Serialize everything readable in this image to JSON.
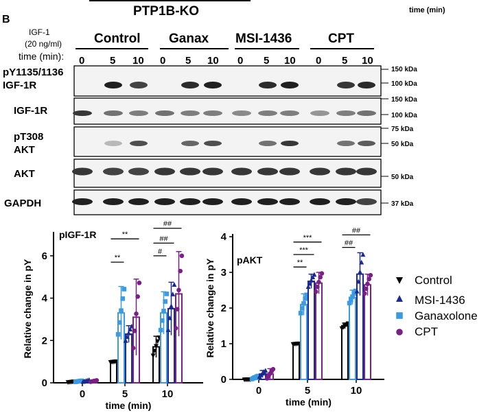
{
  "top_fragment": {
    "group_label": "PTP1B-KO",
    "time_unit_fragment": "time (min)"
  },
  "panel_letter": "B",
  "treatment": {
    "line1": "IGF-1",
    "line2": "(20 ng/ml)",
    "time_label": "time (min):"
  },
  "groups": [
    "Control",
    "Ganax",
    "MSI-1436",
    "CPT"
  ],
  "timepoints": [
    "0",
    "5",
    "10"
  ],
  "blot_rows": [
    {
      "label": "pY1135/1136\nIGF-1R",
      "markers": [
        "150 kDa",
        "100 kDa"
      ]
    },
    {
      "label": "IGF-1R",
      "markers": [
        "150 kDa",
        "100 kDa"
      ]
    },
    {
      "label": "pT308\nAKT",
      "markers": [
        "75 kDa",
        "50 kDa"
      ]
    },
    {
      "label": "AKT",
      "markers": [
        "50 kDa"
      ]
    },
    {
      "label": "GAPDH",
      "markers": [
        "37 kDa"
      ]
    }
  ],
  "colors": {
    "Control": "#000000",
    "MSI-1436": "#1b2a8c",
    "Ganaxolone": "#3a9be0",
    "CPT": "#7a1f86"
  },
  "legend": {
    "entries": [
      {
        "name": "Control",
        "marker": "triangle-down",
        "color": "#000000"
      },
      {
        "name": "MSI-1436",
        "marker": "triangle-up",
        "color": "#1b2a8c"
      },
      {
        "name": "Ganaxolone",
        "marker": "square",
        "color": "#3a9be0"
      },
      {
        "name": "CPT",
        "marker": "circle",
        "color": "#7a1f86"
      }
    ]
  },
  "chart_data": [
    {
      "type": "bar",
      "title": "pIGF-1R",
      "xlabel": "time (min)",
      "ylabel": "Relative change in pY",
      "categories": [
        "0",
        "5",
        "10"
      ],
      "ylim": [
        0,
        7
      ],
      "yticks": [
        0,
        2,
        4,
        6
      ],
      "series": [
        {
          "name": "Control",
          "values": [
            0.05,
            1.0,
            1.7
          ],
          "errors": [
            0.02,
            0.02,
            0.5
          ]
        },
        {
          "name": "Ganaxolone",
          "values": [
            0.07,
            3.3,
            3.3
          ],
          "errors": [
            0.03,
            1.25,
            1.0
          ]
        },
        {
          "name": "MSI-1436",
          "values": [
            0.08,
            2.3,
            3.5
          ],
          "errors": [
            0.05,
            0.4,
            1.25
          ]
        },
        {
          "name": "CPT",
          "values": [
            0.08,
            3.1,
            4.2
          ],
          "errors": [
            0.04,
            1.8,
            2.0
          ]
        }
      ],
      "significance": [
        {
          "label": "**",
          "from": "Control@5",
          "to": "Ganaxolone@5",
          "y": 5.7
        },
        {
          "label": "**",
          "from": "Control@5",
          "to": "CPT@5",
          "y": 6.8
        },
        {
          "label": "#",
          "from": "Control@10",
          "to": "Ganaxolone@10",
          "y": 6.0
        },
        {
          "label": "##",
          "from": "Control@10",
          "to": "MSI-1436@10",
          "y": 6.6
        },
        {
          "label": "##",
          "from": "Control@10",
          "to": "CPT@10",
          "y": 7.3
        }
      ]
    },
    {
      "type": "bar",
      "title": "pAKT",
      "xlabel": "time (min)",
      "ylabel": "Relative change in pY",
      "categories": [
        "0",
        "5",
        "10"
      ],
      "ylim": [
        0,
        4
      ],
      "yticks": [
        0,
        1,
        2,
        3,
        4
      ],
      "series": [
        {
          "name": "Control",
          "values": [
            0.0,
            1.0,
            1.5
          ],
          "errors": [
            0.0,
            0.01,
            0.08
          ]
        },
        {
          "name": "Ganaxolone",
          "values": [
            0.05,
            2.1,
            2.3
          ],
          "errors": [
            0.05,
            0.3,
            0.2
          ]
        },
        {
          "name": "MSI-1436",
          "values": [
            0.15,
            2.75,
            2.95
          ],
          "errors": [
            0.1,
            0.2,
            0.6
          ]
        },
        {
          "name": "CPT",
          "values": [
            0.15,
            2.7,
            2.65
          ],
          "errors": [
            0.15,
            0.3,
            0.3
          ]
        }
      ],
      "significance": [
        {
          "label": "**",
          "from": "Control@5",
          "to": "Ganaxolone@5",
          "y": 3.15
        },
        {
          "label": "***",
          "from": "Control@5",
          "to": "MSI-1436@5",
          "y": 3.5
        },
        {
          "label": "***",
          "from": "Control@5",
          "to": "CPT@5",
          "y": 3.85
        },
        {
          "label": "##",
          "from": "Control@10",
          "to": "Ganaxolone@10",
          "y": 3.7
        },
        {
          "label": "##",
          "from": "Control@10",
          "to": "CPT@10",
          "y": 4.05
        }
      ]
    }
  ]
}
